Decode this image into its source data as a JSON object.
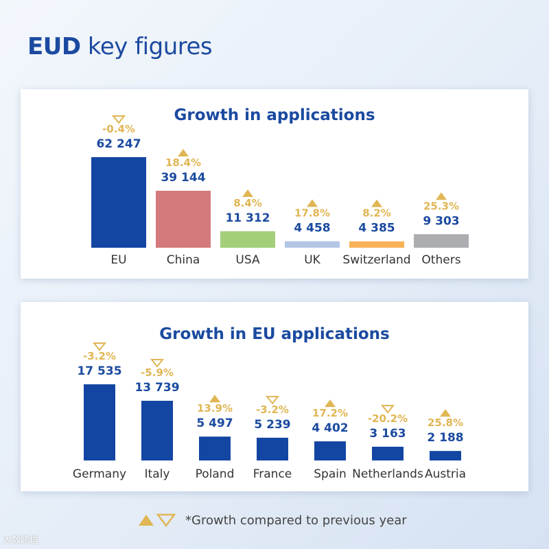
{
  "header": {
    "title_bold": "EUD",
    "title_rest": " key figures"
  },
  "chart_data": [
    {
      "type": "bar",
      "title": "Growth in applications",
      "categories": [
        "EU",
        "China",
        "USA",
        "UK",
        "Switzerland",
        "Others"
      ],
      "values": [
        62247,
        39144,
        11312,
        4458,
        4385,
        9303
      ],
      "value_labels": [
        "62 247",
        "39 144",
        "11 312",
        "4 458",
        "4 385",
        "9 303"
      ],
      "growth_labels": [
        "-0.4%",
        "18.4%",
        "8.4%",
        "17.8%",
        "8.2%",
        "25.3%"
      ],
      "growth": [
        -0.4,
        18.4,
        8.4,
        17.8,
        8.2,
        25.3
      ],
      "colors": [
        "#1345a3",
        "#d47a7c",
        "#a3cf7a",
        "#b4c6e6",
        "#f8b257",
        "#acadb0"
      ],
      "xlabel": "",
      "ylabel": "",
      "ylim": [
        0,
        62247
      ]
    },
    {
      "type": "bar",
      "title": "Growth in EU applications",
      "categories": [
        "Germany",
        "Italy",
        "Poland",
        "France",
        "Spain",
        "Netherlands",
        "Austria"
      ],
      "values": [
        17535,
        13739,
        5497,
        5239,
        4402,
        3163,
        2188
      ],
      "value_labels": [
        "17 535",
        "13 739",
        "5 497",
        "5 239",
        "4 402",
        "3 163",
        "2 188"
      ],
      "growth_labels": [
        "-3.2%",
        "-5.9%",
        "13.9%",
        "-3.2%",
        "17.2%",
        "-20.2%",
        "25.8%"
      ],
      "growth": [
        -3.2,
        -5.9,
        13.9,
        -3.2,
        17.2,
        -20.2,
        25.8
      ],
      "colors": [
        "#1345a3"
      ],
      "xlabel": "",
      "ylabel": "",
      "ylim": [
        0,
        17535
      ]
    }
  ],
  "footer": {
    "note": "*Growth compared to previous year"
  },
  "watermark": "大数跨境",
  "colors": {
    "accent": "#1b4aa0",
    "triangle": "#e0b654"
  }
}
